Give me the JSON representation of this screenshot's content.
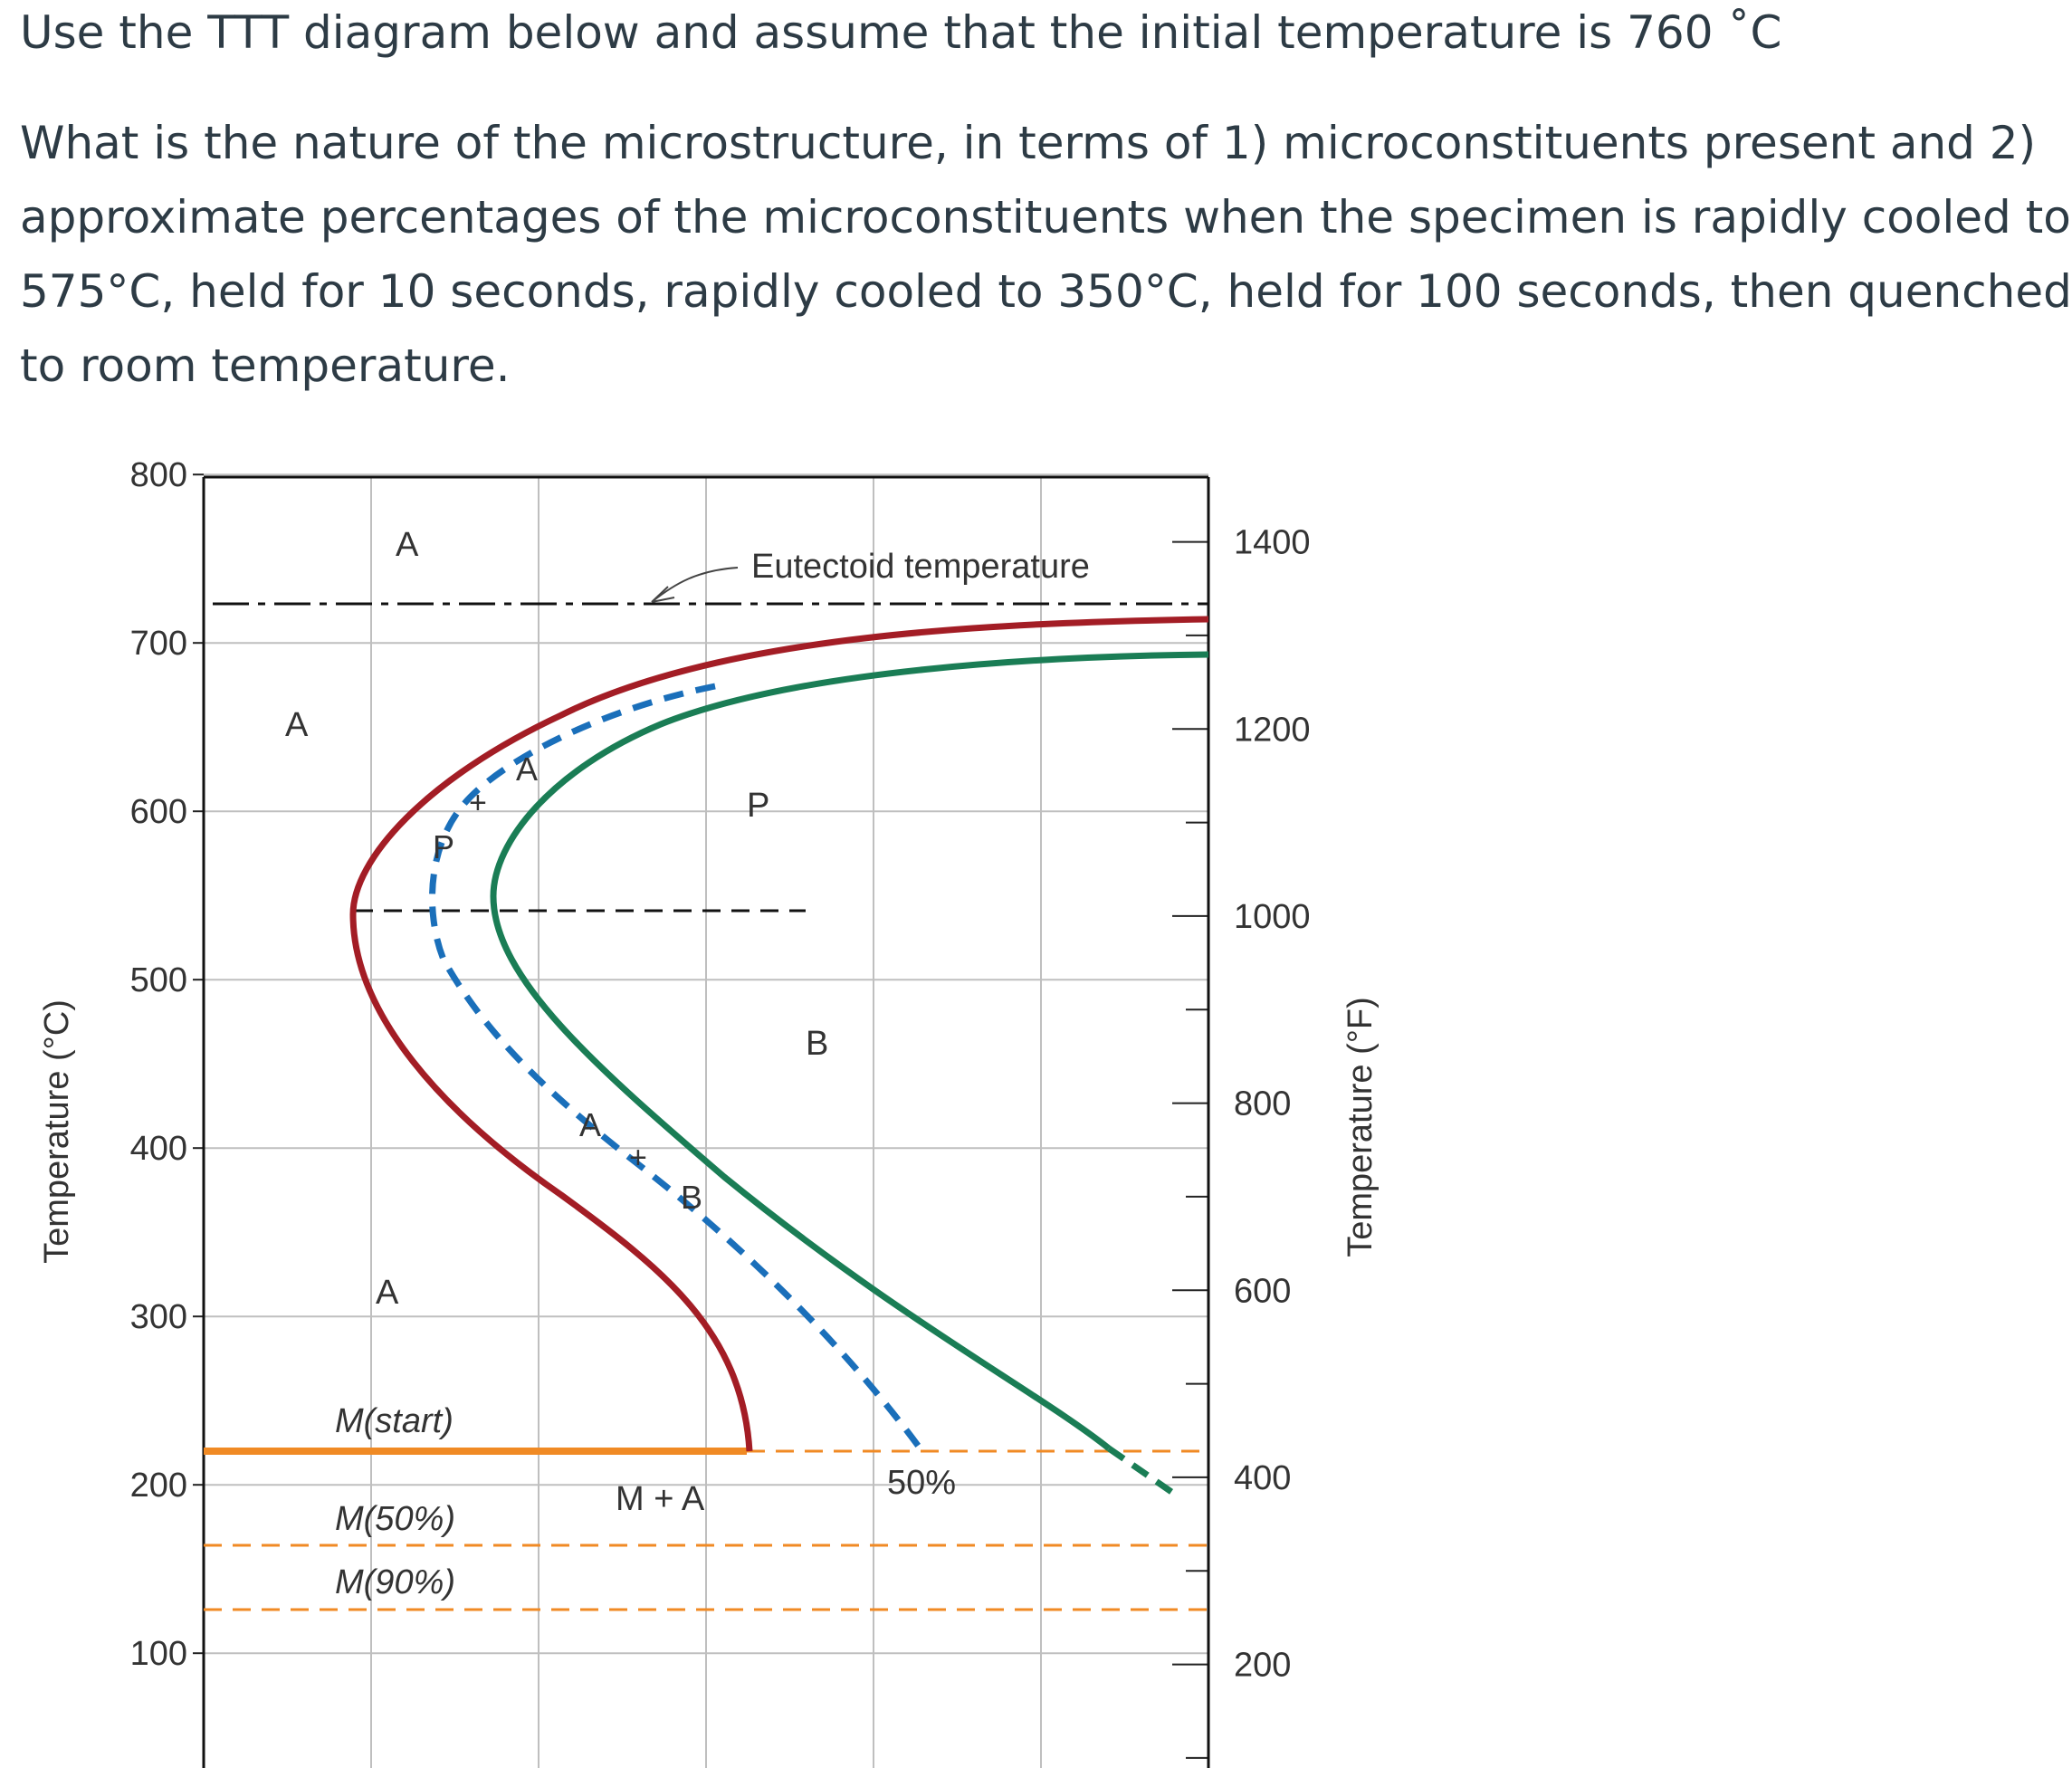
{
  "question": {
    "instruction": "Use the TTT diagram below and assume that the initial temperature is 760 ˚C",
    "body_lines": [
      "What is the nature of the microstructure, in terms of 1) microconstituents present and 2)",
      "approximate percentages of the microconstituents when the specimen is rapidly cooled to",
      "575°C, held for 10 seconds, rapidly cooled to 350°C, held for 100 seconds, then quenched",
      "to room temperature."
    ]
  },
  "chart_data": {
    "type": "line",
    "ylabel_left": "Temperature (°C)",
    "ylabel_right": "Temperature (°F)",
    "y_ticks_left": [
      800,
      700,
      600,
      500,
      400,
      300,
      200,
      100
    ],
    "y_ticks_right": [
      1400,
      1200,
      1000,
      800,
      600,
      400,
      200
    ],
    "ylim": [
      70,
      800
    ],
    "x_gridlines": 6,
    "annotations": {
      "eutectoid": "Eutectoid temperature",
      "region_A_top": "A",
      "region_A_left": "A",
      "region_A_low": "A",
      "region_P": "P",
      "region_B": "B",
      "mix_AP_A": "A",
      "mix_AP_plus": "+",
      "mix_AP_P": "P",
      "mix_AB_A": "A",
      "mix_AB_plus": "+",
      "mix_AB_B": "B",
      "m_start": "M(start)",
      "m_50": "M(50%)",
      "m_90": "M(90%)",
      "m_plus_a": "M + A",
      "fifty_percent": "50%"
    },
    "colors": {
      "start_curve": "#a31d25",
      "fifty_curve": "#1a6fba",
      "finish_curve": "#1a7d55",
      "martensite": "#f08a24",
      "grid": "#bfbfbf"
    },
    "horizontal_lines": {
      "eutectoid_C": 727,
      "m_start_C": 220,
      "m_50_C": 165,
      "m_90_C": 128,
      "nose_C": 540
    }
  }
}
